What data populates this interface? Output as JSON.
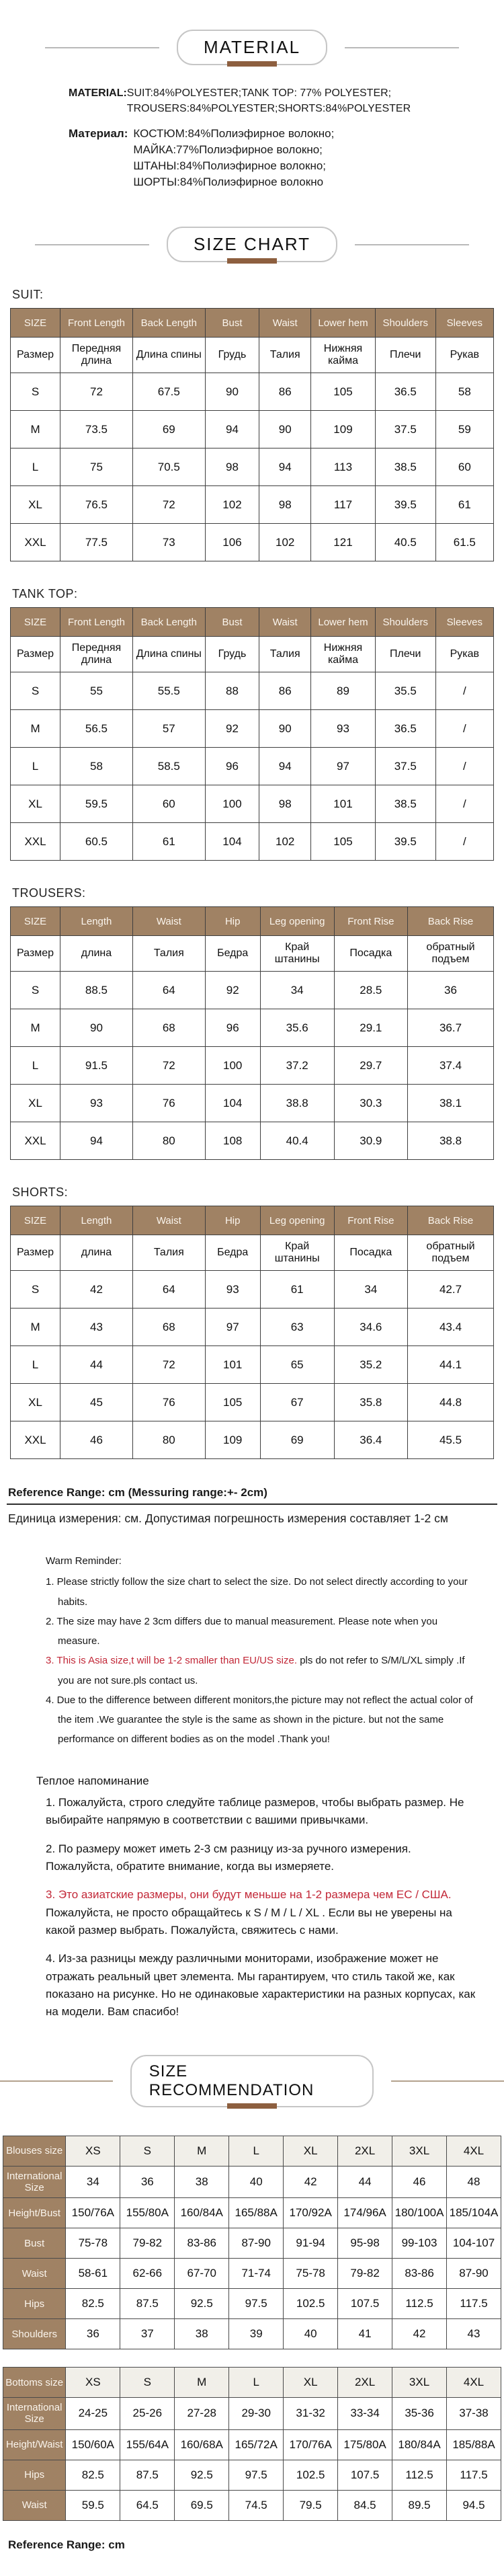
{
  "material": {
    "title": "MATERIAL",
    "en_label": "MATERIAL:",
    "en_lines": [
      "SUIT:84%POLYESTER;TANK TOP: 77% POLYESTER;",
      "TROUSERS:84%POLYESTER;SHORTS:84%POLYESTER"
    ],
    "ru_label": "Материал:",
    "ru_lines": [
      "КОСТЮМ:84%Полиэфирное волокно;",
      "МАЙКА:77%Полиэфирное волокно;",
      "ШТАНЫ:84%Полиэфирное волокно;",
      "ШОРТЫ:84%Полиэфирное волокно"
    ]
  },
  "size_chart": {
    "title": "SIZE CHART",
    "tables": [
      {
        "label": "SUIT:",
        "headers_en": [
          "SIZE",
          "Front Length",
          "Back Length",
          "Bust",
          "Waist",
          "Lower hem",
          "Shoulders",
          "Sleeves"
        ],
        "headers_ru": [
          "Размер",
          "Передняя длина",
          "Длина спины",
          "Грудь",
          "Талия",
          "Нижняя кайма",
          "Плечи",
          "Рукав"
        ],
        "rows": [
          [
            "S",
            "72",
            "67.5",
            "90",
            "86",
            "105",
            "36.5",
            "58"
          ],
          [
            "M",
            "73.5",
            "69",
            "94",
            "90",
            "109",
            "37.5",
            "59"
          ],
          [
            "L",
            "75",
            "70.5",
            "98",
            "94",
            "113",
            "38.5",
            "60"
          ],
          [
            "XL",
            "76.5",
            "72",
            "102",
            "98",
            "117",
            "39.5",
            "61"
          ],
          [
            "XXL",
            "77.5",
            "73",
            "106",
            "102",
            "121",
            "40.5",
            "61.5"
          ]
        ]
      },
      {
        "label": "TANK TOP:",
        "headers_en": [
          "SIZE",
          "Front Length",
          "Back Length",
          "Bust",
          "Waist",
          "Lower hem",
          "Shoulders",
          "Sleeves"
        ],
        "headers_ru": [
          "Размер",
          "Передняя длина",
          "Длина спины",
          "Грудь",
          "Талия",
          "Нижняя кайма",
          "Плечи",
          "Рукав"
        ],
        "rows": [
          [
            "S",
            "55",
            "55.5",
            "88",
            "86",
            "89",
            "35.5",
            "/"
          ],
          [
            "M",
            "56.5",
            "57",
            "92",
            "90",
            "93",
            "36.5",
            "/"
          ],
          [
            "L",
            "58",
            "58.5",
            "96",
            "94",
            "97",
            "37.5",
            "/"
          ],
          [
            "XL",
            "59.5",
            "60",
            "100",
            "98",
            "101",
            "38.5",
            "/"
          ],
          [
            "XXL",
            "60.5",
            "61",
            "104",
            "102",
            "105",
            "39.5",
            "/"
          ]
        ]
      },
      {
        "label": "TROUSERS:",
        "headers_en": [
          "SIZE",
          "Length",
          "Waist",
          "Hip",
          "Leg opening",
          "Front Rise",
          "Back Rise"
        ],
        "headers_ru": [
          "Размер",
          "длина",
          "Талия",
          "Бедра",
          "Край штанины",
          "Посадка",
          "обратный подъем"
        ],
        "rows": [
          [
            "S",
            "88.5",
            "64",
            "92",
            "34",
            "28.5",
            "36"
          ],
          [
            "M",
            "90",
            "68",
            "96",
            "35.6",
            "29.1",
            "36.7"
          ],
          [
            "L",
            "91.5",
            "72",
            "100",
            "37.2",
            "29.7",
            "37.4"
          ],
          [
            "XL",
            "93",
            "76",
            "104",
            "38.8",
            "30.3",
            "38.1"
          ],
          [
            "XXL",
            "94",
            "80",
            "108",
            "40.4",
            "30.9",
            "38.8"
          ]
        ]
      },
      {
        "label": "SHORTS:",
        "headers_en": [
          "SIZE",
          "Length",
          "Waist",
          "Hip",
          "Leg opening",
          "Front Rise",
          "Back Rise"
        ],
        "headers_ru": [
          "Размер",
          "длина",
          "Талия",
          "Бедра",
          "Край штанины",
          "Посадка",
          "обратный подъем"
        ],
        "rows": [
          [
            "S",
            "42",
            "64",
            "93",
            "61",
            "34",
            "42.7"
          ],
          [
            "M",
            "43",
            "68",
            "97",
            "63",
            "34.6",
            "43.4"
          ],
          [
            "L",
            "44",
            "72",
            "101",
            "65",
            "35.2",
            "44.1"
          ],
          [
            "XL",
            "45",
            "76",
            "105",
            "67",
            "35.8",
            "44.8"
          ],
          [
            "XXL",
            "46",
            "80",
            "109",
            "69",
            "36.4",
            "45.5"
          ]
        ]
      }
    ]
  },
  "reference": {
    "en": "Reference Range: cm (Messuring range:+- 2cm)",
    "ru": "Единица измерения: см. Допустимая погрешность измерения составляет 1-2 см"
  },
  "reminder_en": {
    "title": "Warm Reminder:",
    "item1": "1. Please strictly follow the size chart to select the size. Do not select directly according to your habits.",
    "item2": "2. The size may have 2 3cm differs due to manual measurement. Please note when you measure.",
    "item3_red": "3. This is Asia size,t will be 1-2 smaller than EU/US size.",
    "item3_rest": "pls do not refer to S/M/L/XL simply .If you are not sure.pls contact us.",
    "item4": "4. Due to the difference between different monitors,the picture may not reflect the actual color of the item .We guarantee the style is the same as shown in the picture. but not the same performance on different bodies as on the model .Thank you!"
  },
  "reminder_ru": {
    "title": "Теплое напоминание",
    "item1": "1. Пожалуйста, строго следуйте таблице размеров, чтобы выбрать размер. Не выбирайте напрямую в соответствии с вашими привычками.",
    "item2": "2. По размеру может иметь 2-3 см разницу из-за ручного измерения. Пожалуйста, обратите внимание, когда вы измеряете.",
    "item3_red": "3. Это азиатские размеры, они будут меньше на 1-2 размера чем ЕС / США.",
    "item3_rest": "Пожалуйста, не просто обращайтесь к S / M / L / XL . Если вы не уверены на какой размер выбрать. Пожалуйста, свяжитесь с нами.",
    "item4": "4. Из-за разницы между различными мониторами, изображение может не отражать реальный цвет элемента. Мы гарантируем, что стиль такой же, как показано на рисунке. Но не одинаковые характеристики на разных корпусах, как на модели. Вам спасибо!"
  },
  "size_recommendation": {
    "title": "SIZE RECOMMENDATION",
    "blouses": {
      "rows": [
        {
          "label": "Blouses size",
          "values": [
            "XS",
            "S",
            "M",
            "L",
            "XL",
            "2XL",
            "3XL",
            "4XL"
          ]
        },
        {
          "label": "International Size",
          "values": [
            "34",
            "36",
            "38",
            "40",
            "42",
            "44",
            "46",
            "48"
          ]
        },
        {
          "label": "Height/Bust",
          "values": [
            "150/76A",
            "155/80A",
            "160/84A",
            "165/88A",
            "170/92A",
            "174/96A",
            "180/100A",
            "185/104A"
          ]
        },
        {
          "label": "Bust",
          "values": [
            "75-78",
            "79-82",
            "83-86",
            "87-90",
            "91-94",
            "95-98",
            "99-103",
            "104-107"
          ]
        },
        {
          "label": "Waist",
          "values": [
            "58-61",
            "62-66",
            "67-70",
            "71-74",
            "75-78",
            "79-82",
            "83-86",
            "87-90"
          ]
        },
        {
          "label": "Hips",
          "values": [
            "82.5",
            "87.5",
            "92.5",
            "97.5",
            "102.5",
            "107.5",
            "112.5",
            "117.5"
          ]
        },
        {
          "label": "Shoulders",
          "values": [
            "36",
            "37",
            "38",
            "39",
            "40",
            "41",
            "42",
            "43"
          ]
        }
      ]
    },
    "bottoms": {
      "rows": [
        {
          "label": "Bottoms size",
          "values": [
            "XS",
            "S",
            "M",
            "L",
            "XL",
            "2XL",
            "3XL",
            "4XL"
          ]
        },
        {
          "label": "International Size",
          "values": [
            "24-25",
            "25-26",
            "27-28",
            "29-30",
            "31-32",
            "33-34",
            "35-36",
            "37-38"
          ]
        },
        {
          "label": "Height/Waist",
          "values": [
            "150/60A",
            "155/64A",
            "160/68A",
            "165/72A",
            "170/76A",
            "175/80A",
            "180/84A",
            "185/88A"
          ]
        },
        {
          "label": "Hips",
          "values": [
            "82.5",
            "87.5",
            "92.5",
            "97.5",
            "102.5",
            "107.5",
            "112.5",
            "117.5"
          ]
        },
        {
          "label": "Waist",
          "values": [
            "59.5",
            "64.5",
            "69.5",
            "74.5",
            "79.5",
            "84.5",
            "89.5",
            "94.5"
          ]
        }
      ]
    },
    "footer": "Reference Range: cm"
  },
  "colors": {
    "header_brown": "#a08264",
    "accent_brown": "#8d5f3f",
    "alert_red": "#c22838"
  }
}
